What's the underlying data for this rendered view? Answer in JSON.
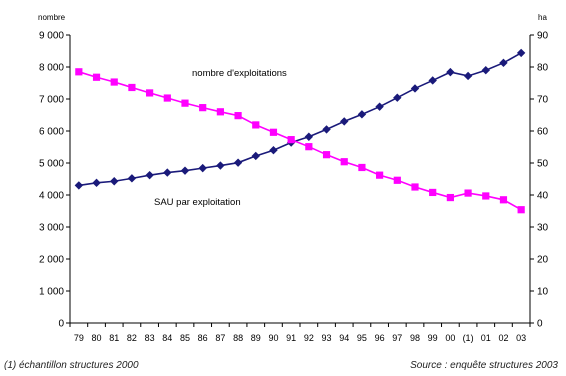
{
  "chart_data": {
    "type": "line",
    "categories": [
      "79",
      "80",
      "81",
      "82",
      "83",
      "84",
      "85",
      "86",
      "87",
      "88",
      "89",
      "90",
      "91",
      "92",
      "93",
      "94",
      "95",
      "96",
      "97",
      "98",
      "99",
      "00",
      "(1)",
      "01",
      "02",
      "03"
    ],
    "y_left": {
      "unit_label": "nombre",
      "range": [
        0,
        9000
      ],
      "tick_labels": [
        "0",
        "1 000",
        "2 000",
        "3 000",
        "4 000",
        "5 000",
        "6 000",
        "7 000",
        "8 000",
        "9 000"
      ]
    },
    "y_right": {
      "unit_label": "ha",
      "range": [
        0,
        90
      ],
      "tick_labels": [
        "0",
        "10",
        "20",
        "30",
        "40",
        "50",
        "60",
        "70",
        "80",
        "90"
      ]
    },
    "series": [
      {
        "name": "nombre d'exploitations",
        "axis": "left",
        "color": "#1a1a7a",
        "marker": "diamond",
        "values": [
          4300,
          4380,
          4430,
          4520,
          4620,
          4700,
          4760,
          4840,
          4920,
          5010,
          5220,
          5400,
          5640,
          5820,
          6050,
          6300,
          6520,
          6760,
          7040,
          7330,
          7580,
          7840,
          7720,
          7900,
          8130,
          8440
        ]
      },
      {
        "name": "SAU par exploitation",
        "axis": "right",
        "color": "#ff00ff",
        "marker": "square",
        "values": [
          78.5,
          76.8,
          75.3,
          73.6,
          71.9,
          70.3,
          68.7,
          67.3,
          66.0,
          64.8,
          61.9,
          59.6,
          57.3,
          55.1,
          52.6,
          50.4,
          48.6,
          46.2,
          44.6,
          42.5,
          40.8,
          39.2,
          40.6,
          39.7,
          38.5,
          35.4
        ]
      }
    ],
    "annotations": [
      "nombre d'exploitations",
      "SAU par exploitation"
    ],
    "grid": false,
    "legend": "none"
  },
  "footnote_left": "(1) échantillon structures 2000",
  "footnote_right": "Source : enquête structures 2003"
}
